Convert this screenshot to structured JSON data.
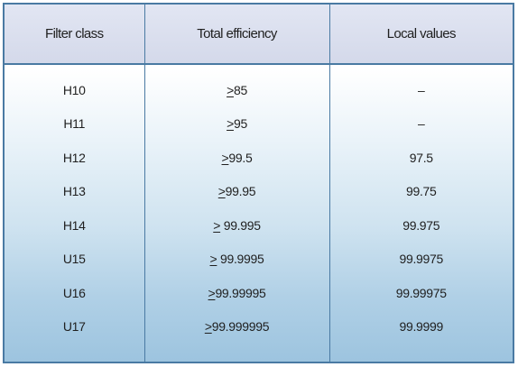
{
  "table": {
    "headers": [
      "Filter class",
      "Total efficiency",
      "Local values"
    ],
    "ge_symbol": ">",
    "rows": [
      {
        "filter_class": "H10",
        "total_efficiency": "85",
        "local_values": "–"
      },
      {
        "filter_class": "H11",
        "total_efficiency": "95",
        "local_values": "–"
      },
      {
        "filter_class": "H12",
        "total_efficiency": "99.5",
        "local_values": "97.5"
      },
      {
        "filter_class": "H13",
        "total_efficiency": "99.95",
        "local_values": "99.75"
      },
      {
        "filter_class": "H14",
        "total_efficiency": " 99.995",
        "local_values": "99.975"
      },
      {
        "filter_class": "U15",
        "total_efficiency": " 99.9995",
        "local_values": "99.9975"
      },
      {
        "filter_class": "U16",
        "total_efficiency": "99.99995",
        "local_values": "99.99975"
      },
      {
        "filter_class": "U17",
        "total_efficiency": "99.999995",
        "local_values": "99.9999"
      }
    ]
  }
}
